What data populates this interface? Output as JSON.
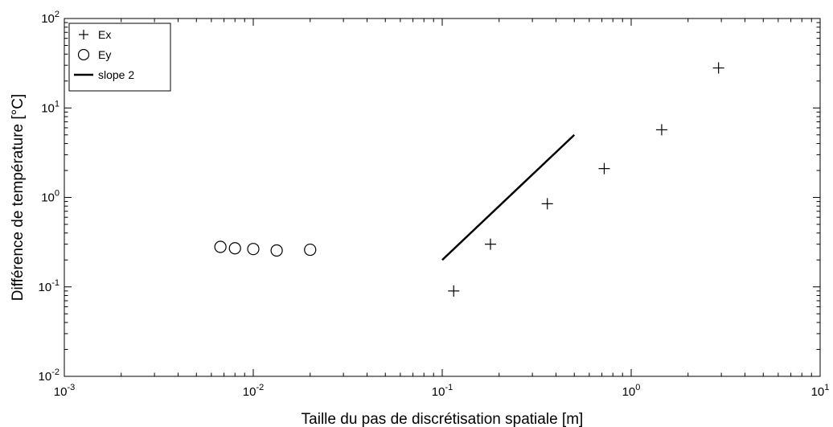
{
  "chart_data": {
    "type": "scatter",
    "xlabel": "Taille du pas de discrétisation spatiale [m]",
    "ylabel": "Différence de température [°C]",
    "x_scale": "log",
    "y_scale": "log",
    "xlim": [
      0.001,
      10
    ],
    "ylim": [
      0.01,
      100
    ],
    "x_ticks": [
      {
        "value": 0.001,
        "base": "10",
        "exp": "-3"
      },
      {
        "value": 0.01,
        "base": "10",
        "exp": "-2"
      },
      {
        "value": 0.1,
        "base": "10",
        "exp": "-1"
      },
      {
        "value": 1,
        "base": "10",
        "exp": "0"
      },
      {
        "value": 10,
        "base": "10",
        "exp": "1"
      }
    ],
    "y_ticks": [
      {
        "value": 0.01,
        "base": "10",
        "exp": "-2"
      },
      {
        "value": 0.1,
        "base": "10",
        "exp": "-1"
      },
      {
        "value": 1,
        "base": "10",
        "exp": "0"
      },
      {
        "value": 10,
        "base": "10",
        "exp": "1"
      },
      {
        "value": 100,
        "base": "10",
        "exp": "2"
      }
    ],
    "grid": false,
    "legend_position": "top-left",
    "series": [
      {
        "name": "Ex",
        "marker": "plus",
        "color": "#000000",
        "points": [
          {
            "x": 0.115,
            "y": 0.09
          },
          {
            "x": 0.18,
            "y": 0.3
          },
          {
            "x": 0.36,
            "y": 0.85
          },
          {
            "x": 0.72,
            "y": 2.1
          },
          {
            "x": 1.45,
            "y": 5.7
          },
          {
            "x": 2.9,
            "y": 28
          }
        ]
      },
      {
        "name": "Ey",
        "marker": "circle",
        "color": "#000000",
        "points": [
          {
            "x": 0.0067,
            "y": 0.28
          },
          {
            "x": 0.008,
            "y": 0.27
          },
          {
            "x": 0.01,
            "y": 0.265
          },
          {
            "x": 0.0133,
            "y": 0.255
          },
          {
            "x": 0.02,
            "y": 0.26
          }
        ]
      },
      {
        "name": "slope 2",
        "marker": "line",
        "color": "#000000",
        "points": [
          {
            "x": 0.1,
            "y": 0.2
          },
          {
            "x": 0.5,
            "y": 5
          }
        ]
      }
    ]
  }
}
